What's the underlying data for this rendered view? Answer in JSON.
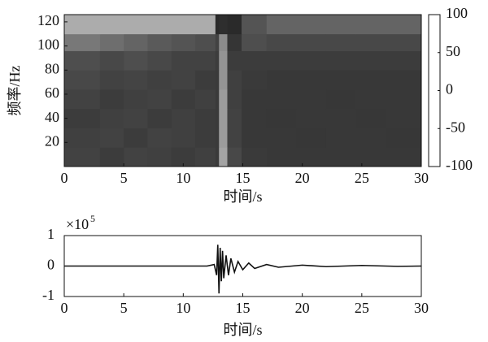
{
  "chart_data": [
    {
      "type": "heatmap",
      "ylabel": "频率/Hz",
      "xlabel": "时间/s",
      "xlim": [
        0,
        30
      ],
      "xticks": [
        0,
        5,
        10,
        15,
        20,
        25,
        30
      ],
      "ylim": [
        0,
        126
      ],
      "yticks": [
        20,
        40,
        60,
        80,
        100,
        120
      ],
      "x_edges": [
        0,
        3,
        5,
        7,
        9,
        11,
        12.7,
        13.0,
        13.7,
        14.9,
        17,
        19.5,
        22,
        24.5,
        27,
        30
      ],
      "y_edges": [
        0,
        16,
        32,
        48,
        64,
        80,
        96,
        110,
        126
      ],
      "values": [
        [
          20,
          25,
          20,
          22,
          25,
          22,
          28,
          -40,
          15,
          28,
          30,
          30,
          30,
          30,
          30
        ],
        [
          22,
          20,
          25,
          20,
          22,
          25,
          28,
          -35,
          20,
          30,
          30,
          32,
          30,
          30,
          32
        ],
        [
          25,
          22,
          20,
          25,
          22,
          25,
          28,
          -35,
          20,
          30,
          32,
          30,
          30,
          32,
          30
        ],
        [
          20,
          25,
          22,
          20,
          25,
          22,
          28,
          -35,
          22,
          30,
          30,
          30,
          32,
          30,
          30
        ],
        [
          15,
          20,
          18,
          22,
          20,
          25,
          28,
          -30,
          22,
          28,
          30,
          30,
          30,
          30,
          30
        ],
        [
          10,
          15,
          10,
          15,
          20,
          20,
          25,
          -30,
          25,
          25,
          25,
          25,
          25,
          25,
          25
        ],
        [
          -15,
          -10,
          -5,
          0,
          5,
          10,
          20,
          -25,
          35,
          10,
          15,
          15,
          15,
          15,
          15
        ],
        [
          -45,
          -45,
          -45,
          -45,
          -45,
          -45,
          50,
          45,
          50,
          5,
          -5,
          -5,
          -5,
          -5,
          -5
        ]
      ],
      "clim": [
        -100,
        100
      ],
      "colormap": [
        "#6e6e6e",
        "#e6e6e6",
        "#b4b4b4",
        "#8c8c8c",
        "#5a5a5a",
        "#3c3c3c",
        "#2a2a2a",
        "#4a4a4a",
        "#7a7a7a"
      ],
      "cticks": [
        -100,
        -50,
        0,
        50,
        100
      ]
    },
    {
      "type": "line",
      "xlabel": "时间/s",
      "y_offset_text": "×10",
      "y_offset_exponent": "5",
      "xlim": [
        0,
        30
      ],
      "xticks": [
        0,
        5,
        10,
        15,
        20,
        25,
        30
      ],
      "ylim": [
        -1,
        1
      ],
      "yticks": [
        -1,
        0,
        1
      ],
      "color": "#111111",
      "x": [
        0,
        2,
        4,
        6,
        8,
        10,
        12,
        12.6,
        12.8,
        12.9,
        13.0,
        13.1,
        13.2,
        13.3,
        13.4,
        13.6,
        13.8,
        14.0,
        14.3,
        14.6,
        15,
        15.5,
        16,
        17,
        18,
        20,
        22,
        25,
        28,
        30
      ],
      "values": [
        0,
        0,
        0,
        0,
        0,
        0,
        0,
        0.05,
        -0.3,
        0.7,
        -0.9,
        0.6,
        -0.5,
        0.5,
        -0.4,
        0.35,
        -0.3,
        0.25,
        -0.2,
        0.15,
        -0.12,
        0.1,
        -0.08,
        0.05,
        -0.04,
        0.03,
        -0.02,
        0.02,
        -0.01,
        0
      ]
    }
  ]
}
